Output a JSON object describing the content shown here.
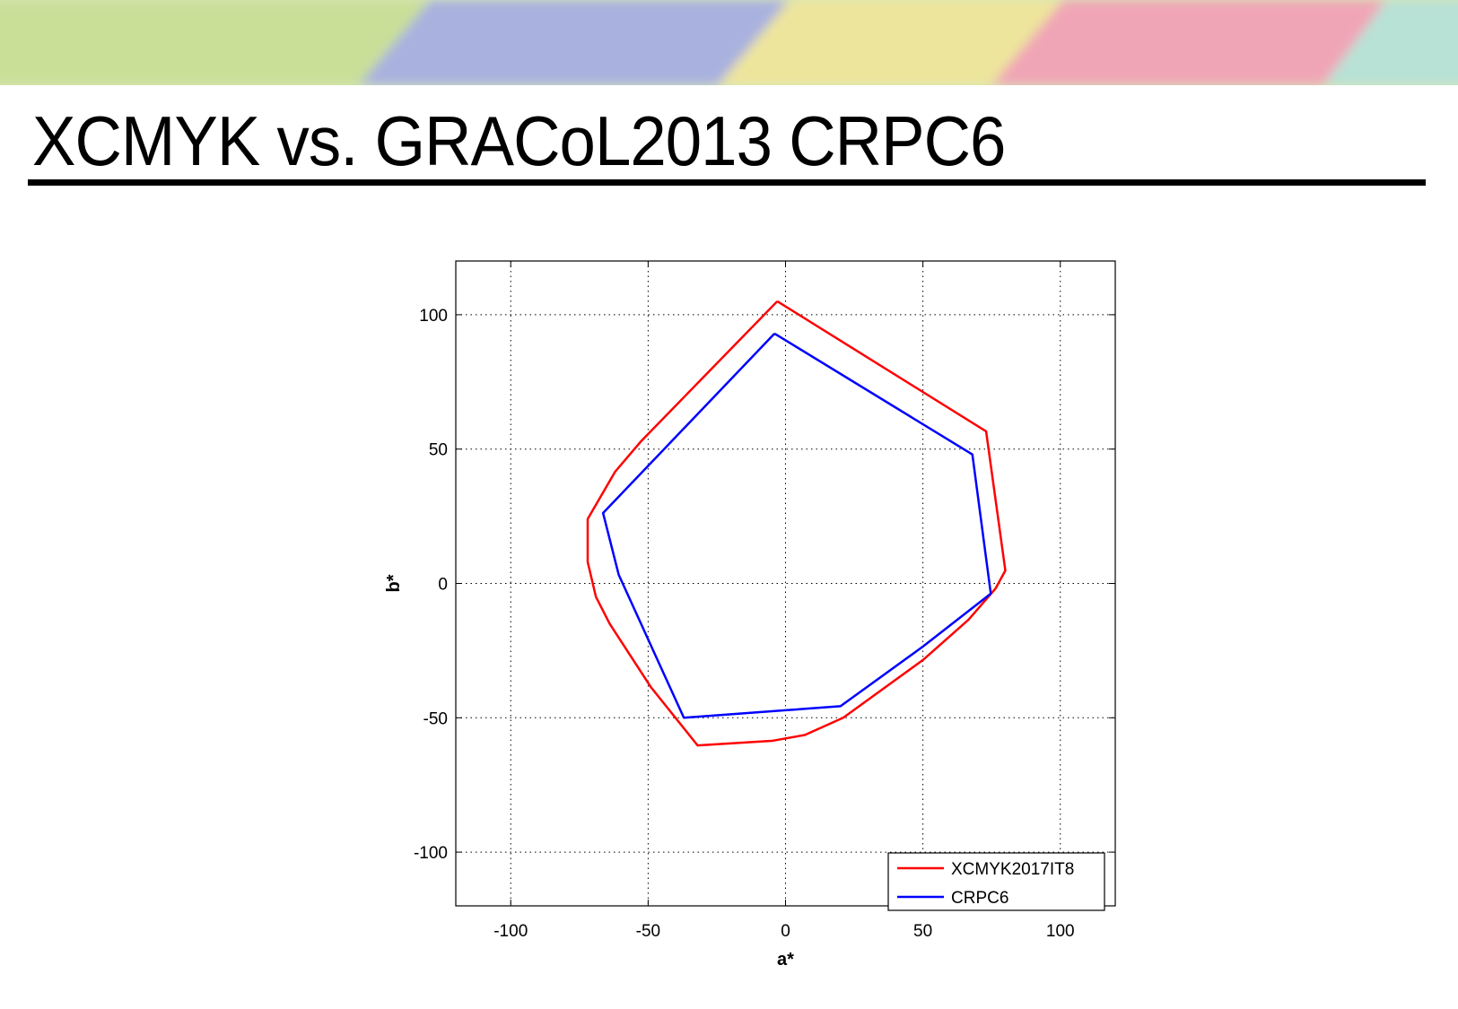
{
  "slide": {
    "title": "XCMYK vs. GRACoL2013 CRPC6"
  },
  "colors": {
    "banner": [
      "#c9df98",
      "#a9b1df",
      "#eee59c",
      "#f0a5b6",
      "#b8e2d6"
    ]
  },
  "chart_data": {
    "type": "line",
    "title": "",
    "xlabel": "a*",
    "ylabel": "b*",
    "xlim": [
      -120,
      120
    ],
    "ylim": [
      -120,
      120
    ],
    "xticks": [
      -100,
      -50,
      0,
      50,
      100
    ],
    "yticks": [
      -100,
      -50,
      0,
      50,
      100
    ],
    "xtick_labels": [
      "-100",
      "-50",
      "0",
      "50",
      "100"
    ],
    "ytick_labels": [
      "-100",
      "-50",
      "0",
      "50",
      "100"
    ],
    "grid": true,
    "legend_position": "bottom-right",
    "series": [
      {
        "name": "XCMYK2017IT8",
        "color": "#ff0000",
        "points": [
          [
            -3,
            105
          ],
          [
            73,
            56.6
          ],
          [
            80,
            4.8
          ],
          [
            76.5,
            -1.8
          ],
          [
            66.6,
            -13.5
          ],
          [
            50,
            -28.5
          ],
          [
            21,
            -50
          ],
          [
            7,
            -56.4
          ],
          [
            -5,
            -58.6
          ],
          [
            -32,
            -60.3
          ],
          [
            -49,
            -38.6
          ],
          [
            -64,
            -15
          ],
          [
            -69,
            -5
          ],
          [
            -72,
            8
          ],
          [
            -72,
            24
          ],
          [
            -62,
            41.6
          ],
          [
            -52.5,
            53
          ],
          [
            -3,
            105
          ]
        ]
      },
      {
        "name": "CRPC6",
        "color": "#0000ff",
        "points": [
          [
            -4,
            93
          ],
          [
            68,
            48
          ],
          [
            74.7,
            -3.8
          ],
          [
            50,
            -23.5
          ],
          [
            20,
            -45.7
          ],
          [
            0,
            -47.2
          ],
          [
            -37,
            -50
          ],
          [
            -60.7,
            3.2
          ],
          [
            -66.4,
            26.2
          ],
          [
            -4,
            93
          ]
        ]
      }
    ]
  }
}
